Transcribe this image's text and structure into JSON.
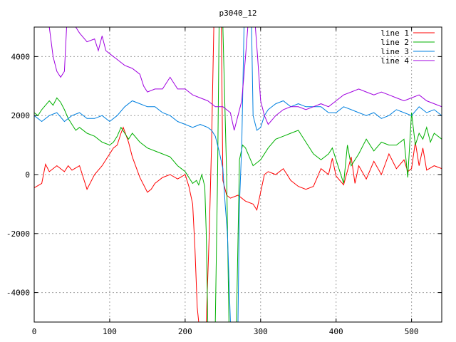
{
  "chart_data": {
    "type": "line",
    "title": "p3040_12",
    "xlabel": "",
    "ylabel": "",
    "xlim": [
      0,
      540
    ],
    "ylim": [
      -5000,
      5000
    ],
    "xticks": [
      "0",
      "100",
      "200",
      "300",
      "400",
      "500"
    ],
    "yticks": [
      "-4000",
      "-2000",
      "0",
      "2000",
      "4000"
    ],
    "xtick_values": [
      0,
      100,
      200,
      300,
      400,
      500
    ],
    "ytick_values": [
      -4000,
      -2000,
      0,
      2000,
      4000
    ],
    "grid": true,
    "legend_position": "top-right",
    "series": [
      {
        "name": "line 1",
        "color": "#ff0000",
        "points": [
          [
            0,
            -450
          ],
          [
            10,
            -300
          ],
          [
            15,
            350
          ],
          [
            20,
            100
          ],
          [
            30,
            300
          ],
          [
            40,
            100
          ],
          [
            45,
            300
          ],
          [
            50,
            150
          ],
          [
            60,
            300
          ],
          [
            70,
            -500
          ],
          [
            80,
            0
          ],
          [
            90,
            300
          ],
          [
            100,
            700
          ],
          [
            105,
            900
          ],
          [
            110,
            1000
          ],
          [
            115,
            1400
          ],
          [
            118,
            1600
          ],
          [
            125,
            1100
          ],
          [
            130,
            600
          ],
          [
            140,
            -100
          ],
          [
            150,
            -600
          ],
          [
            155,
            -500
          ],
          [
            160,
            -300
          ],
          [
            170,
            -100
          ],
          [
            180,
            0
          ],
          [
            190,
            -150
          ],
          [
            200,
            0
          ],
          [
            205,
            -400
          ],
          [
            210,
            -1000
          ],
          [
            213,
            -2500
          ],
          [
            216,
            -4500
          ],
          [
            218,
            -5000
          ],
          [
            228,
            -5000
          ],
          [
            232,
            -2000
          ],
          [
            235,
            1000
          ],
          [
            238,
            5000
          ],
          [
            248,
            5000
          ],
          [
            250,
            -200
          ],
          [
            255,
            -700
          ],
          [
            260,
            -800
          ],
          [
            270,
            -700
          ],
          [
            280,
            -900
          ],
          [
            290,
            -1000
          ],
          [
            295,
            -1200
          ],
          [
            300,
            -600
          ],
          [
            305,
            0
          ],
          [
            310,
            100
          ],
          [
            320,
            0
          ],
          [
            330,
            200
          ],
          [
            340,
            -200
          ],
          [
            350,
            -400
          ],
          [
            360,
            -500
          ],
          [
            370,
            -400
          ],
          [
            380,
            200
          ],
          [
            390,
            0
          ],
          [
            395,
            550
          ],
          [
            400,
            -50
          ],
          [
            410,
            -350
          ],
          [
            420,
            600
          ],
          [
            425,
            -300
          ],
          [
            430,
            300
          ],
          [
            440,
            -150
          ],
          [
            450,
            450
          ],
          [
            460,
            0
          ],
          [
            470,
            700
          ],
          [
            480,
            200
          ],
          [
            490,
            500
          ],
          [
            495,
            100
          ],
          [
            500,
            200
          ],
          [
            505,
            1100
          ],
          [
            510,
            300
          ],
          [
            515,
            900
          ],
          [
            520,
            150
          ],
          [
            530,
            300
          ],
          [
            540,
            200
          ]
        ]
      },
      {
        "name": "line 2",
        "color": "#00b000",
        "points": [
          [
            0,
            2100
          ],
          [
            5,
            2000
          ],
          [
            10,
            2200
          ],
          [
            15,
            2350
          ],
          [
            20,
            2500
          ],
          [
            25,
            2350
          ],
          [
            30,
            2600
          ],
          [
            35,
            2450
          ],
          [
            40,
            2200
          ],
          [
            45,
            1900
          ],
          [
            50,
            1700
          ],
          [
            55,
            1500
          ],
          [
            60,
            1600
          ],
          [
            70,
            1400
          ],
          [
            80,
            1300
          ],
          [
            90,
            1100
          ],
          [
            100,
            1000
          ],
          [
            105,
            1100
          ],
          [
            110,
            1300
          ],
          [
            115,
            1600
          ],
          [
            120,
            1400
          ],
          [
            125,
            1200
          ],
          [
            130,
            1400
          ],
          [
            140,
            1100
          ],
          [
            150,
            900
          ],
          [
            160,
            800
          ],
          [
            170,
            700
          ],
          [
            180,
            600
          ],
          [
            190,
            300
          ],
          [
            200,
            100
          ],
          [
            205,
            -100
          ],
          [
            210,
            -300
          ],
          [
            215,
            -200
          ],
          [
            218,
            -350
          ],
          [
            222,
            0
          ],
          [
            226,
            -400
          ],
          [
            228,
            -2000
          ],
          [
            230,
            -5000
          ],
          [
            240,
            -5000
          ],
          [
            243,
            0
          ],
          [
            245,
            5000
          ],
          [
            250,
            5000
          ],
          [
            255,
            0
          ],
          [
            258,
            -5000
          ],
          [
            268,
            -5000
          ],
          [
            272,
            500
          ],
          [
            276,
            1000
          ],
          [
            280,
            900
          ],
          [
            285,
            600
          ],
          [
            290,
            300
          ],
          [
            295,
            400
          ],
          [
            300,
            500
          ],
          [
            310,
            900
          ],
          [
            320,
            1200
          ],
          [
            330,
            1300
          ],
          [
            340,
            1400
          ],
          [
            350,
            1500
          ],
          [
            360,
            1100
          ],
          [
            370,
            700
          ],
          [
            380,
            500
          ],
          [
            390,
            700
          ],
          [
            395,
            900
          ],
          [
            400,
            500
          ],
          [
            410,
            -300
          ],
          [
            415,
            1000
          ],
          [
            420,
            300
          ],
          [
            430,
            700
          ],
          [
            440,
            1200
          ],
          [
            450,
            800
          ],
          [
            460,
            1100
          ],
          [
            470,
            1000
          ],
          [
            480,
            1000
          ],
          [
            490,
            1200
          ],
          [
            495,
            -100
          ],
          [
            500,
            2100
          ],
          [
            505,
            1000
          ],
          [
            510,
            1400
          ],
          [
            515,
            1200
          ],
          [
            520,
            1600
          ],
          [
            525,
            1100
          ],
          [
            530,
            1400
          ],
          [
            540,
            1200
          ]
        ]
      },
      {
        "name": "line 3",
        "color": "#0080e0",
        "points": [
          [
            0,
            2000
          ],
          [
            10,
            1800
          ],
          [
            20,
            2000
          ],
          [
            30,
            2100
          ],
          [
            40,
            1800
          ],
          [
            50,
            2000
          ],
          [
            60,
            2100
          ],
          [
            70,
            1900
          ],
          [
            80,
            1900
          ],
          [
            90,
            2000
          ],
          [
            100,
            1800
          ],
          [
            110,
            2000
          ],
          [
            120,
            2300
          ],
          [
            130,
            2500
          ],
          [
            140,
            2400
          ],
          [
            150,
            2300
          ],
          [
            160,
            2300
          ],
          [
            170,
            2100
          ],
          [
            180,
            2000
          ],
          [
            190,
            1800
          ],
          [
            200,
            1700
          ],
          [
            210,
            1600
          ],
          [
            220,
            1700
          ],
          [
            230,
            1600
          ],
          [
            235,
            1500
          ],
          [
            240,
            1300
          ],
          [
            245,
            800
          ],
          [
            250,
            200
          ],
          [
            253,
            -1000
          ],
          [
            256,
            -2000
          ],
          [
            260,
            -5000
          ],
          [
            270,
            -5000
          ],
          [
            272,
            -1000
          ],
          [
            275,
            1000
          ],
          [
            278,
            5000
          ],
          [
            288,
            5000
          ],
          [
            290,
            2000
          ],
          [
            295,
            1500
          ],
          [
            300,
            1600
          ],
          [
            305,
            2000
          ],
          [
            310,
            2200
          ],
          [
            320,
            2400
          ],
          [
            330,
            2500
          ],
          [
            340,
            2300
          ],
          [
            350,
            2400
          ],
          [
            360,
            2300
          ],
          [
            370,
            2300
          ],
          [
            380,
            2300
          ],
          [
            390,
            2100
          ],
          [
            400,
            2100
          ],
          [
            410,
            2300
          ],
          [
            420,
            2200
          ],
          [
            430,
            2100
          ],
          [
            440,
            2000
          ],
          [
            450,
            2100
          ],
          [
            460,
            1900
          ],
          [
            470,
            2000
          ],
          [
            480,
            2200
          ],
          [
            490,
            2100
          ],
          [
            500,
            2000
          ],
          [
            510,
            2300
          ],
          [
            520,
            2100
          ],
          [
            530,
            2200
          ],
          [
            540,
            2000
          ]
        ]
      },
      {
        "name": "line 4",
        "color": "#a000e0",
        "points": [
          [
            0,
            5000
          ],
          [
            20,
            5000
          ],
          [
            25,
            4000
          ],
          [
            30,
            3500
          ],
          [
            35,
            3300
          ],
          [
            40,
            3500
          ],
          [
            43,
            5000
          ],
          [
            55,
            5000
          ],
          [
            60,
            4800
          ],
          [
            70,
            4500
          ],
          [
            80,
            4600
          ],
          [
            85,
            4200
          ],
          [
            90,
            4700
          ],
          [
            95,
            4200
          ],
          [
            100,
            4100
          ],
          [
            110,
            3900
          ],
          [
            120,
            3700
          ],
          [
            130,
            3600
          ],
          [
            140,
            3400
          ],
          [
            145,
            3000
          ],
          [
            150,
            2800
          ],
          [
            160,
            2900
          ],
          [
            170,
            2900
          ],
          [
            180,
            3300
          ],
          [
            190,
            2900
          ],
          [
            200,
            2900
          ],
          [
            210,
            2700
          ],
          [
            220,
            2600
          ],
          [
            230,
            2500
          ],
          [
            240,
            2300
          ],
          [
            250,
            2300
          ],
          [
            260,
            2100
          ],
          [
            265,
            1500
          ],
          [
            270,
            2000
          ],
          [
            275,
            2500
          ],
          [
            280,
            4000
          ],
          [
            283,
            5000
          ],
          [
            293,
            5000
          ],
          [
            296,
            4000
          ],
          [
            300,
            2500
          ],
          [
            305,
            2000
          ],
          [
            310,
            1700
          ],
          [
            320,
            2000
          ],
          [
            330,
            2200
          ],
          [
            340,
            2300
          ],
          [
            350,
            2300
          ],
          [
            360,
            2200
          ],
          [
            370,
            2300
          ],
          [
            380,
            2400
          ],
          [
            390,
            2300
          ],
          [
            400,
            2500
          ],
          [
            410,
            2700
          ],
          [
            420,
            2800
          ],
          [
            430,
            2900
          ],
          [
            440,
            2800
          ],
          [
            450,
            2700
          ],
          [
            460,
            2800
          ],
          [
            470,
            2700
          ],
          [
            480,
            2600
          ],
          [
            490,
            2500
          ],
          [
            500,
            2600
          ],
          [
            510,
            2700
          ],
          [
            520,
            2500
          ],
          [
            530,
            2400
          ],
          [
            540,
            2300
          ]
        ]
      }
    ]
  }
}
